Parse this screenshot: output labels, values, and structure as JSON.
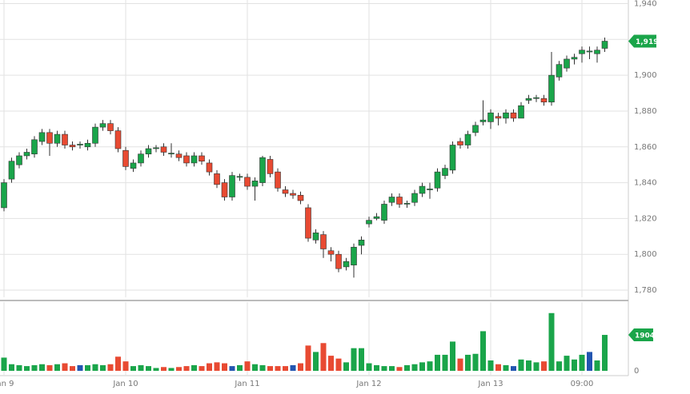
{
  "chart_data": {
    "type": "candlestick",
    "categories": [
      "Jan 9",
      null,
      null,
      null,
      null,
      null,
      null,
      null,
      null,
      null,
      null,
      null,
      null,
      null,
      null,
      null,
      "Jan 10",
      null,
      null,
      null,
      null,
      null,
      null,
      null,
      null,
      null,
      null,
      null,
      null,
      null,
      null,
      null,
      "Jan 11",
      null,
      null,
      null,
      null,
      null,
      null,
      null,
      null,
      null,
      null,
      null,
      null,
      null,
      null,
      null,
      "Jan 12",
      null,
      null,
      null,
      null,
      null,
      null,
      null,
      null,
      null,
      null,
      null,
      null,
      null,
      null,
      null,
      "Jan 13",
      null,
      null,
      null,
      null,
      null,
      null,
      null,
      null,
      null,
      null,
      null,
      "09:00",
      null,
      null,
      null
    ],
    "open": [
      1826,
      1842,
      1850,
      1855,
      1856,
      1863,
      1868,
      1862,
      1867,
      1861,
      1861,
      1860,
      1862,
      1871,
      1873,
      1869,
      1858,
      1848,
      1851,
      1856,
      1859,
      1860,
      1856,
      1856,
      1855,
      1851,
      1855,
      1851,
      1845,
      1840,
      1832,
      1843,
      1843,
      1838,
      1840,
      1853,
      1846,
      1836,
      1834,
      1833,
      1826,
      1808,
      1811,
      1802,
      1800,
      1793,
      1794,
      1805,
      1817,
      1820,
      1819,
      1829,
      1832,
      1828,
      1829,
      1834,
      1836,
      1837,
      1844,
      1847,
      1863,
      1861,
      1868,
      1874,
      1874,
      1877,
      1876,
      1879,
      1876,
      1886,
      1887,
      1887,
      1885,
      1899,
      1904,
      1909,
      1912,
      1913,
      1912,
      1915
    ],
    "high": [
      1842,
      1854,
      1857,
      1859,
      1866,
      1870,
      1870,
      1869,
      1869,
      1863,
      1863,
      1864,
      1873,
      1875,
      1875,
      1871,
      1860,
      1853,
      1858,
      1861,
      1861,
      1862,
      1862,
      1858,
      1857,
      1857,
      1857,
      1853,
      1847,
      1842,
      1846,
      1845,
      1845,
      1843,
      1855,
      1855,
      1848,
      1838,
      1836,
      1835,
      1828,
      1814,
      1813,
      1804,
      1802,
      1798,
      1806,
      1810,
      1821,
      1823,
      1830,
      1834,
      1834,
      1830,
      1836,
      1840,
      1840,
      1848,
      1850,
      1863,
      1865,
      1869,
      1874,
      1886,
      1881,
      1879,
      1881,
      1881,
      1885,
      1889,
      1889,
      1889,
      1913,
      1908,
      1911,
      1912,
      1916,
      1916,
      1916,
      1921
    ],
    "low": [
      1824,
      1840,
      1848,
      1853,
      1854,
      1861,
      1855,
      1860,
      1859,
      1858,
      1859,
      1858,
      1860,
      1869,
      1867,
      1857,
      1847,
      1846,
      1849,
      1854,
      1857,
      1855,
      1854,
      1852,
      1849,
      1849,
      1850,
      1844,
      1837,
      1830,
      1830,
      1841,
      1836,
      1830,
      1838,
      1843,
      1835,
      1832,
      1831,
      1828,
      1807,
      1806,
      1798,
      1796,
      1790,
      1791,
      1787,
      1800,
      1815,
      1819,
      1817,
      1827,
      1826,
      1826,
      1827,
      1832,
      1831,
      1835,
      1842,
      1845,
      1859,
      1859,
      1866,
      1872,
      1870,
      1872,
      1873,
      1874,
      1877,
      1884,
      1885,
      1883,
      1883,
      1897,
      1902,
      1906,
      1907,
      1909,
      1907,
      1913
    ],
    "close": [
      1840,
      1852,
      1855,
      1857,
      1864,
      1868,
      1862,
      1867,
      1861,
      1860,
      1861.5,
      1862,
      1871,
      1873,
      1869,
      1859,
      1849,
      1851,
      1856,
      1859,
      1859.5,
      1857,
      1856.5,
      1854,
      1851,
      1855,
      1852,
      1846,
      1839,
      1832,
      1844,
      1843.5,
      1838,
      1841,
      1854,
      1845,
      1837,
      1834,
      1833,
      1830,
      1809,
      1812,
      1803,
      1800,
      1792,
      1796,
      1804,
      1808,
      1819,
      1821,
      1828,
      1832,
      1828,
      1828.5,
      1834,
      1838,
      1836.5,
      1846,
      1848,
      1861,
      1861,
      1867,
      1872,
      1875,
      1879,
      1876,
      1879,
      1876,
      1883,
      1887,
      1887.5,
      1885,
      1900,
      1906,
      1909,
      1910,
      1914,
      1913.5,
      1914,
      1919
    ],
    "color_up": "#1aa54a",
    "color_down": "#e84a32",
    "ylim": [
      1776,
      1942
    ],
    "yticks": [
      {
        "value": 1780,
        "label": "1,780"
      },
      {
        "value": 1800,
        "label": "1,800"
      },
      {
        "value": 1820,
        "label": "1,820"
      },
      {
        "value": 1840,
        "label": "1,840"
      },
      {
        "value": 1860,
        "label": "1,860"
      },
      {
        "value": 1880,
        "label": "1,880"
      },
      {
        "value": 1900,
        "label": "1,900"
      },
      {
        "value": 1920,
        "label": "1,920"
      },
      {
        "value": 1940,
        "label": "1,940"
      }
    ],
    "last_price": {
      "value": 1919,
      "label": "1,919"
    },
    "grid": true,
    "volume": {
      "values": [
        700,
        350,
        300,
        250,
        300,
        350,
        300,
        350,
        400,
        250,
        300,
        300,
        350,
        300,
        350,
        750,
        500,
        250,
        300,
        250,
        150,
        200,
        150,
        200,
        250,
        300,
        250,
        400,
        450,
        400,
        250,
        300,
        500,
        350,
        300,
        250,
        250,
        250,
        300,
        400,
        1340,
        1000,
        1470,
        800,
        650,
        450,
        1200,
        1200,
        400,
        300,
        250,
        250,
        200,
        300,
        350,
        450,
        500,
        850,
        850,
        1550,
        650,
        850,
        900,
        2100,
        550,
        350,
        300,
        250,
        600,
        550,
        450,
        500,
        3060,
        500,
        800,
        600,
        850,
        1000,
        550,
        1904
      ],
      "colors": [
        "#1aa54a",
        "#1aa54a",
        "#1aa54a",
        "#1aa54a",
        "#1aa54a",
        "#1aa54a",
        "#e84a32",
        "#1aa54a",
        "#e84a32",
        "#e84a32",
        "#2255b0",
        "#1aa54a",
        "#1aa54a",
        "#1aa54a",
        "#e84a32",
        "#e84a32",
        "#e84a32",
        "#1aa54a",
        "#1aa54a",
        "#1aa54a",
        "#1aa54a",
        "#e84a32",
        "#1aa54a",
        "#e84a32",
        "#e84a32",
        "#1aa54a",
        "#e84a32",
        "#e84a32",
        "#e84a32",
        "#e84a32",
        "#2255b0",
        "#1aa54a",
        "#e84a32",
        "#1aa54a",
        "#1aa54a",
        "#e84a32",
        "#e84a32",
        "#e84a32",
        "#2255b0",
        "#e84a32",
        "#e84a32",
        "#1aa54a",
        "#e84a32",
        "#e84a32",
        "#e84a32",
        "#1aa54a",
        "#1aa54a",
        "#1aa54a",
        "#1aa54a",
        "#1aa54a",
        "#1aa54a",
        "#1aa54a",
        "#e84a32",
        "#1aa54a",
        "#1aa54a",
        "#1aa54a",
        "#1aa54a",
        "#1aa54a",
        "#1aa54a",
        "#1aa54a",
        "#e84a32",
        "#1aa54a",
        "#1aa54a",
        "#1aa54a",
        "#1aa54a",
        "#e84a32",
        "#1aa54a",
        "#2255b0",
        "#1aa54a",
        "#1aa54a",
        "#1aa54a",
        "#e84a32",
        "#1aa54a",
        "#1aa54a",
        "#1aa54a",
        "#1aa54a",
        "#1aa54a",
        "#2255b0",
        "#1aa54a",
        "#1aa54a"
      ],
      "ylim": [
        0,
        3600
      ],
      "yticks": [
        0
      ]
    }
  }
}
